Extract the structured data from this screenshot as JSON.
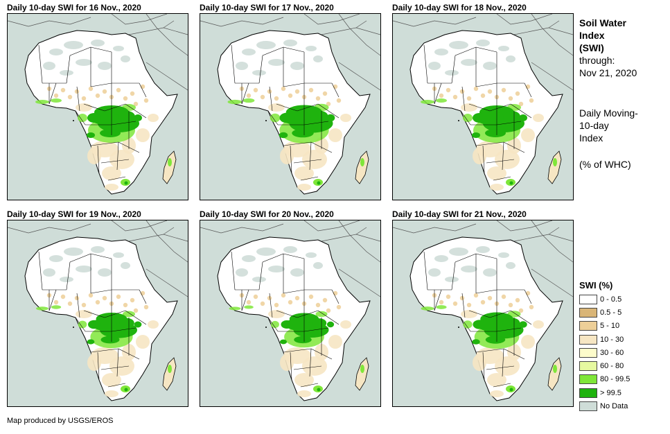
{
  "panels": [
    {
      "title": "Daily 10-day SWI for 16 Nov., 2020",
      "wet_level": 1.0
    },
    {
      "title": "Daily 10-day SWI for 17 Nov., 2020",
      "wet_level": 1.05
    },
    {
      "title": "Daily 10-day SWI for 18 Nov., 2020",
      "wet_level": 1.0
    },
    {
      "title": "Daily 10-day SWI for 19 Nov., 2020",
      "wet_level": 0.9
    },
    {
      "title": "Daily 10-day SWI for 20 Nov., 2020",
      "wet_level": 0.85
    },
    {
      "title": "Daily 10-day SWI for 21 Nov., 2020",
      "wet_level": 0.95
    }
  ],
  "side_info": {
    "title_lines": [
      "Soil Water",
      "Index",
      "(SWI)"
    ],
    "through_label": "through:",
    "through_date": "Nov 21, 2020",
    "desc_lines": [
      "Daily Moving-",
      "10-day",
      "Index"
    ],
    "unit": "(% of WHC)"
  },
  "legend": {
    "title": "SWI (%)",
    "items": [
      {
        "label": "0 - 0.5",
        "color": "#ffffff"
      },
      {
        "label": "0.5 - 5",
        "color": "#d9b577"
      },
      {
        "label": "5 - 10",
        "color": "#edcf98"
      },
      {
        "label": "10 - 30",
        "color": "#f6e6c3"
      },
      {
        "label": "30 - 60",
        "color": "#fdfccb"
      },
      {
        "label": "60 - 80",
        "color": "#e6f9a0"
      },
      {
        "label": "80 - 99.5",
        "color": "#7fe639"
      },
      {
        "label": "> 99.5",
        "color": "#1fb30e"
      },
      {
        "label": "No Data",
        "color": "#cfddd8"
      }
    ]
  },
  "credit": "Map produced by USGS/EROS",
  "colors": {
    "sea": "#cfddd8",
    "land": "#ffffff",
    "nodata": "#cfddd8",
    "dry_tan": "#edcf98",
    "light_tan": "#f6e6c3",
    "wet": "#1fb30e",
    "moist": "#7fe639",
    "border": "#000000"
  }
}
